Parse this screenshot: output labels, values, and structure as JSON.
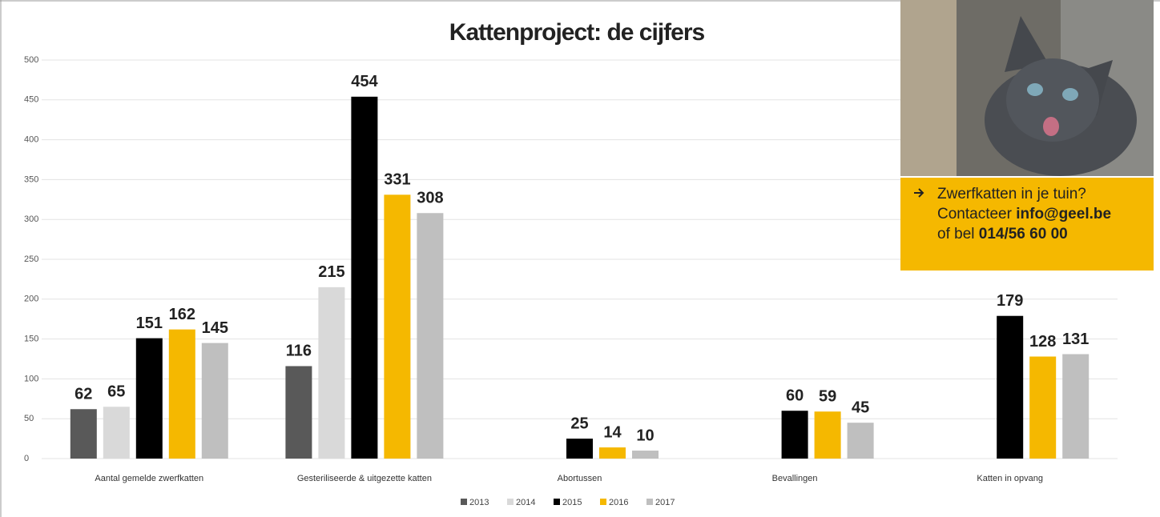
{
  "chart_data": {
    "type": "bar",
    "title": "Kattenproject: de cijfers",
    "categories": [
      "Aantal gemelde zwerfkatten",
      "Gesteriliseerde & uitgezette katten",
      "Abortussen",
      "Bevallingen",
      "Katten in opvang"
    ],
    "series": [
      {
        "name": "2013",
        "color": "#595959",
        "values": [
          62,
          116,
          null,
          null,
          null
        ]
      },
      {
        "name": "2014",
        "color": "#d9d9d9",
        "values": [
          65,
          215,
          null,
          null,
          null
        ]
      },
      {
        "name": "2015",
        "color": "#000000",
        "values": [
          151,
          454,
          25,
          60,
          179
        ]
      },
      {
        "name": "2016",
        "color": "#f5b800",
        "values": [
          162,
          331,
          14,
          59,
          128
        ]
      },
      {
        "name": "2017",
        "color": "#bfbfbf",
        "values": [
          145,
          308,
          10,
          45,
          131
        ]
      }
    ],
    "ylim": [
      0,
      500
    ],
    "yticks": [
      0,
      50,
      100,
      150,
      200,
      250,
      300,
      350,
      400,
      450,
      500
    ],
    "grid": true,
    "legend": "bottom"
  },
  "callout": {
    "line1": "Zwerfkatten in je tuin?",
    "line2": "Contacteer",
    "email": "info@geel.be",
    "line3": "of bel",
    "phone": "014/56 60 00"
  }
}
